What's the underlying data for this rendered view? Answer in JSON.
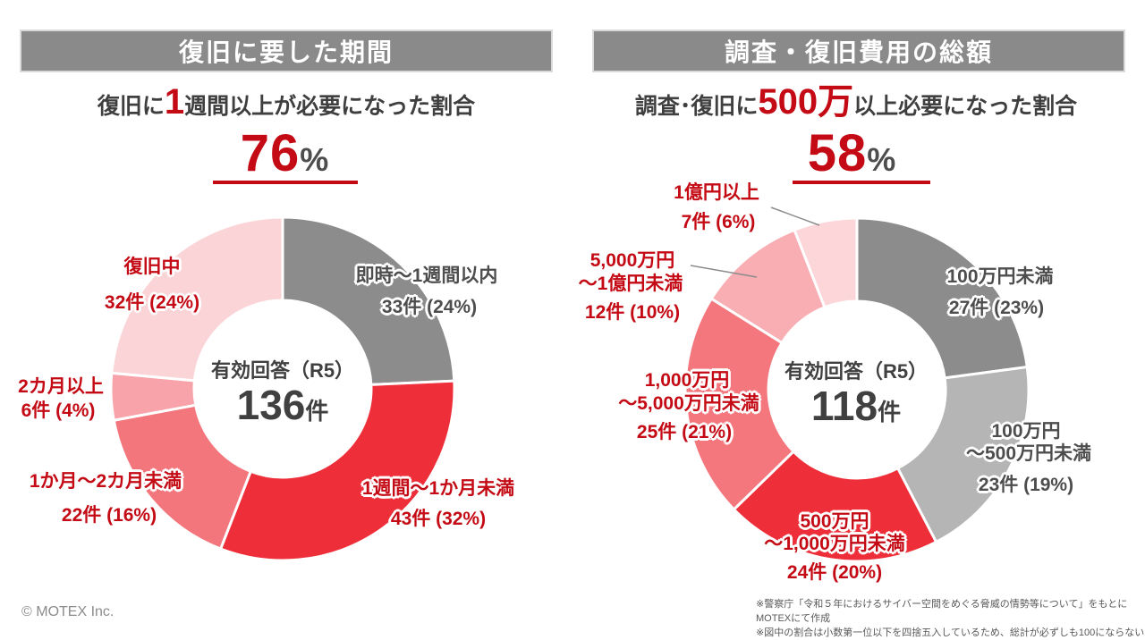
{
  "colors": {
    "accent_red_text": "#C40A14",
    "banner_bg": "#8A8A8A",
    "dark_text": "#3F3F3F",
    "label_gray": "#4D4D4D"
  },
  "left": {
    "banner": "復旧に要した期間",
    "subtitle_pre": "復旧に",
    "subtitle_big": "1",
    "subtitle_post": "週間以上が必要になった割合",
    "pct": "76",
    "pct_unit": "%",
    "center_label": "有効回答（R5）",
    "center_value": "136",
    "center_unit": "件"
  },
  "right": {
    "banner": "調査・復旧費用の総額",
    "subtitle_pre": "調査･復旧に",
    "subtitle_big": "500万",
    "subtitle_post": "以上必要になった割合",
    "pct": "58",
    "pct_unit": "%",
    "center_label": "有効回答（R5）",
    "center_value": "118",
    "center_unit": "件"
  },
  "chart_data": [
    {
      "type": "donut",
      "title": "復旧に要した期間",
      "subtitle": "復旧に1週間以上が必要になった割合",
      "highlight_pct": 76,
      "total_label": "有効回答（R5）",
      "total": 136,
      "total_unit": "件",
      "start": "top",
      "direction": "clockwise",
      "categories": [
        "即時～1週間以内",
        "1週間～1か月未満",
        "1か月～2カ月未満",
        "2カ月以上",
        "復旧中"
      ],
      "values": [
        33,
        43,
        22,
        6,
        32
      ],
      "pcts": [
        24,
        32,
        16,
        4,
        24
      ],
      "colors": [
        "#8C8C8C",
        "#EE2E38",
        "#F4767D",
        "#F7A3A9",
        "#FBD4D7"
      ],
      "labels": [
        {
          "lines": [
            "即時～1週間以内"
          ],
          "value_text": "33件 (24%)"
        },
        {
          "lines": [
            "1週間～1か月未満"
          ],
          "value_text": "43件 (32%)"
        },
        {
          "lines": [
            "1か月～2カ月未満"
          ],
          "value_text": "22件 (16%)"
        },
        {
          "lines": [
            "2カ月以上"
          ],
          "value_text": "6件 (4%)"
        },
        {
          "lines": [
            "復旧中"
          ],
          "value_text": "32件 (24%)"
        }
      ]
    },
    {
      "type": "donut",
      "title": "調査・復旧費用の総額",
      "subtitle": "調査･復旧に500万以上必要になった割合",
      "highlight_pct": 58,
      "total_label": "有効回答（R5）",
      "total": 118,
      "total_unit": "件",
      "start": "top",
      "direction": "clockwise",
      "categories": [
        "100万円未満",
        "100万円～500万円未満",
        "500万円～1,000万円未満",
        "1,000万円～5,000万円未満",
        "5,000万円～1億円未満",
        "1億円以上"
      ],
      "values": [
        27,
        23,
        24,
        25,
        12,
        7
      ],
      "pcts": [
        23,
        19,
        20,
        21,
        10,
        6
      ],
      "colors": [
        "#8C8C8C",
        "#B5B5B5",
        "#EE2E38",
        "#F5777E",
        "#F8AEB3",
        "#FCD6D9"
      ],
      "labels": [
        {
          "lines": [
            "100万円未満"
          ],
          "value_text": "27件 (23%)"
        },
        {
          "lines": [
            "100万円",
            "～500万円未満"
          ],
          "value_text": "23件 (19%)"
        },
        {
          "lines": [
            "500万円",
            "～1,000万円未満"
          ],
          "value_text": "24件 (20%)"
        },
        {
          "lines": [
            "1,000万円",
            "～5,000万円未満"
          ],
          "value_text": "25件 (21%)"
        },
        {
          "lines": [
            "5,000万円",
            "～1億円未満"
          ],
          "value_text": "12件 (10%)"
        },
        {
          "lines": [
            "1億円以上"
          ],
          "value_text": "7件 (6%)"
        }
      ]
    }
  ],
  "footer": {
    "copyright": "© MOTEX Inc.",
    "note1": "※警察庁「令和５年におけるサイバー空間をめぐる脅威の情勢等について」をもとにMOTEXにて作成",
    "note2": "※図中の割合は小数第一位以下を四捨五入しているため、総計が必ずしも100にならない"
  }
}
